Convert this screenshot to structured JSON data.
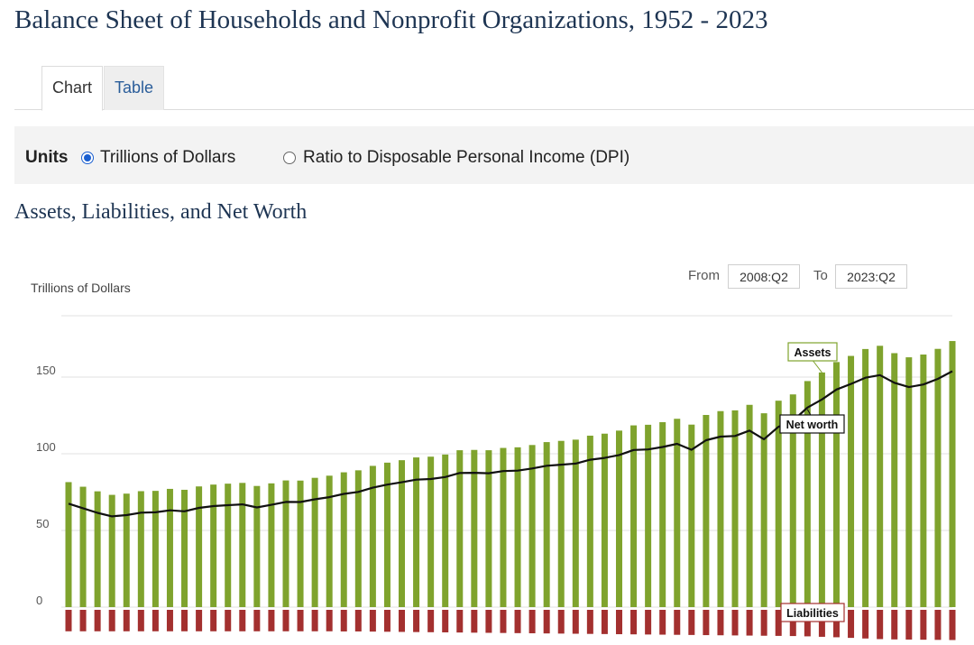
{
  "page": {
    "title": "Balance Sheet of Households and Nonprofit Organizations, 1952 - 2023"
  },
  "tabs": [
    {
      "label": "Chart",
      "active": true
    },
    {
      "label": "Table",
      "active": false
    }
  ],
  "units": {
    "label": "Units",
    "options": [
      {
        "label": "Trillions of Dollars",
        "selected": true
      },
      {
        "label": "Ratio to Disposable Personal Income (DPI)",
        "selected": false
      }
    ]
  },
  "range": {
    "from_label": "From",
    "from_value": "2008:Q2",
    "to_label": "To",
    "to_value": "2023:Q2"
  },
  "colors": {
    "assets": "#7fa32d",
    "liabilities": "#a3302f",
    "net_worth": "#111111"
  },
  "chart_data": {
    "type": "bar",
    "title": "Assets, Liabilities, and Net Worth",
    "ylabel": "Trillions of Dollars",
    "ylim": [
      -20,
      190
    ],
    "yticks": [
      0,
      50,
      100,
      150
    ],
    "grid": true,
    "x_range": [
      "2008:Q2",
      "2023:Q2"
    ],
    "series": [
      {
        "name": "Assets",
        "type": "bar",
        "values": [
          81.5,
          78.5,
          75.5,
          73.2,
          74,
          75.6,
          75.8,
          77.1,
          76.5,
          78.7,
          79.9,
          80.5,
          81,
          79,
          80.7,
          82.6,
          82.5,
          84.3,
          85.7,
          87.9,
          89.2,
          92.1,
          94.2,
          95.8,
          97.6,
          98.1,
          99.5,
          102.3,
          102.5,
          102.3,
          103.8,
          104.2,
          105.7,
          107.6,
          108.4,
          109.2,
          111.8,
          113.1,
          115.1,
          118.5,
          118.9,
          120.6,
          122.8,
          119,
          125.3,
          127.8,
          128.3,
          131.9,
          126.4,
          134.6,
          138.7,
          147.4,
          153,
          159.8,
          163.8,
          168.3,
          170.4,
          165.6,
          162.9,
          164.7,
          168.4,
          173.5
        ]
      },
      {
        "name": "Liabilities",
        "type": "bar",
        "values": [
          -14,
          -14,
          -14,
          -14,
          -14,
          -14,
          -14,
          -14,
          -14,
          -14,
          -14,
          -14,
          -14,
          -14,
          -14,
          -14,
          -14,
          -14,
          -14,
          -14.1,
          -14.1,
          -14.2,
          -14.3,
          -14.4,
          -14.5,
          -14.6,
          -14.7,
          -14.8,
          -14.9,
          -15,
          -15.1,
          -15.2,
          -15.3,
          -15.4,
          -15.5,
          -15.6,
          -15.7,
          -15.8,
          -15.9,
          -16,
          -16.1,
          -16.2,
          -16.3,
          -16.4,
          -16.5,
          -16.6,
          -16.7,
          -16.8,
          -16.9,
          -17,
          -17.1,
          -17.3,
          -17.6,
          -17.9,
          -18.3,
          -18.7,
          -19.1,
          -19.3,
          -19.4,
          -19.5,
          -19.6,
          -19.7
        ]
      },
      {
        "name": "Net worth",
        "type": "line",
        "values": [
          67.5,
          64.5,
          61.5,
          59.2,
          60,
          61.6,
          61.8,
          63.1,
          62.5,
          64.7,
          65.9,
          66.5,
          67,
          65,
          66.7,
          68.6,
          68.5,
          70.3,
          71.7,
          73.8,
          75.1,
          77.9,
          79.9,
          81.4,
          83.1,
          83.5,
          84.8,
          87.5,
          87.6,
          87.3,
          88.7,
          89,
          90.4,
          92.2,
          92.9,
          93.6,
          96.1,
          97.3,
          99.2,
          102.5,
          102.8,
          104.4,
          106.5,
          102.6,
          108.8,
          111.2,
          111.6,
          115.1,
          109.5,
          117.6,
          121.6,
          130.1,
          135.4,
          141.9,
          145.5,
          149.6,
          151.3,
          146.3,
          143.5,
          145.2,
          148.8,
          153.8
        ]
      }
    ],
    "annotations": [
      {
        "text": "Assets",
        "series": "Assets"
      },
      {
        "text": "Net worth",
        "series": "Net worth"
      },
      {
        "text": "Liabilities",
        "series": "Liabilities"
      }
    ]
  }
}
